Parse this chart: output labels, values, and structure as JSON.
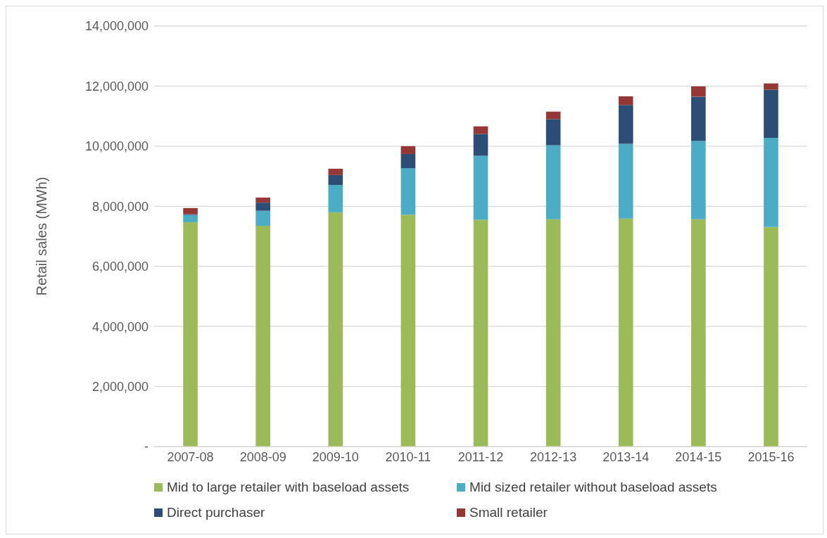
{
  "chart_data": {
    "type": "bar",
    "stacked": true,
    "ylabel": "Retail sales (MWh)",
    "categories": [
      "2007-08",
      "2008-09",
      "2009-10",
      "2010-11",
      "2011-12",
      "2012-13",
      "2013-14",
      "2014-15",
      "2015-16"
    ],
    "series": [
      {
        "name": "Mid to large retailer with baseload assets",
        "color": "#9bbb59",
        "values": [
          7470000,
          7350000,
          7800000,
          7720000,
          7550000,
          7570000,
          7590000,
          7570000,
          7310000
        ]
      },
      {
        "name": "Mid sized retailer without baseload assets",
        "color": "#4bacc6",
        "values": [
          240000,
          500000,
          910000,
          1550000,
          2130000,
          2460000,
          2490000,
          2600000,
          2970000
        ]
      },
      {
        "name": "Direct purchaser",
        "color": "#2c4d75",
        "values": [
          30000,
          270000,
          330000,
          470000,
          730000,
          870000,
          1290000,
          1480000,
          1600000
        ]
      },
      {
        "name": "Small retailer",
        "color": "#953735",
        "values": [
          200000,
          170000,
          210000,
          260000,
          250000,
          250000,
          290000,
          340000,
          210000
        ]
      }
    ],
    "ylim": [
      0,
      14000000
    ],
    "yticks": [
      {
        "value": 0,
        "label": "-"
      },
      {
        "value": 2000000,
        "label": "2,000,000"
      },
      {
        "value": 4000000,
        "label": "4,000,000"
      },
      {
        "value": 6000000,
        "label": "6,000,000"
      },
      {
        "value": 8000000,
        "label": "8,000,000"
      },
      {
        "value": 10000000,
        "label": "10,000,000"
      },
      {
        "value": 12000000,
        "label": "12,000,000"
      },
      {
        "value": 14000000,
        "label": "14,000,000"
      }
    ],
    "grid": "y",
    "legend": "bottom"
  }
}
